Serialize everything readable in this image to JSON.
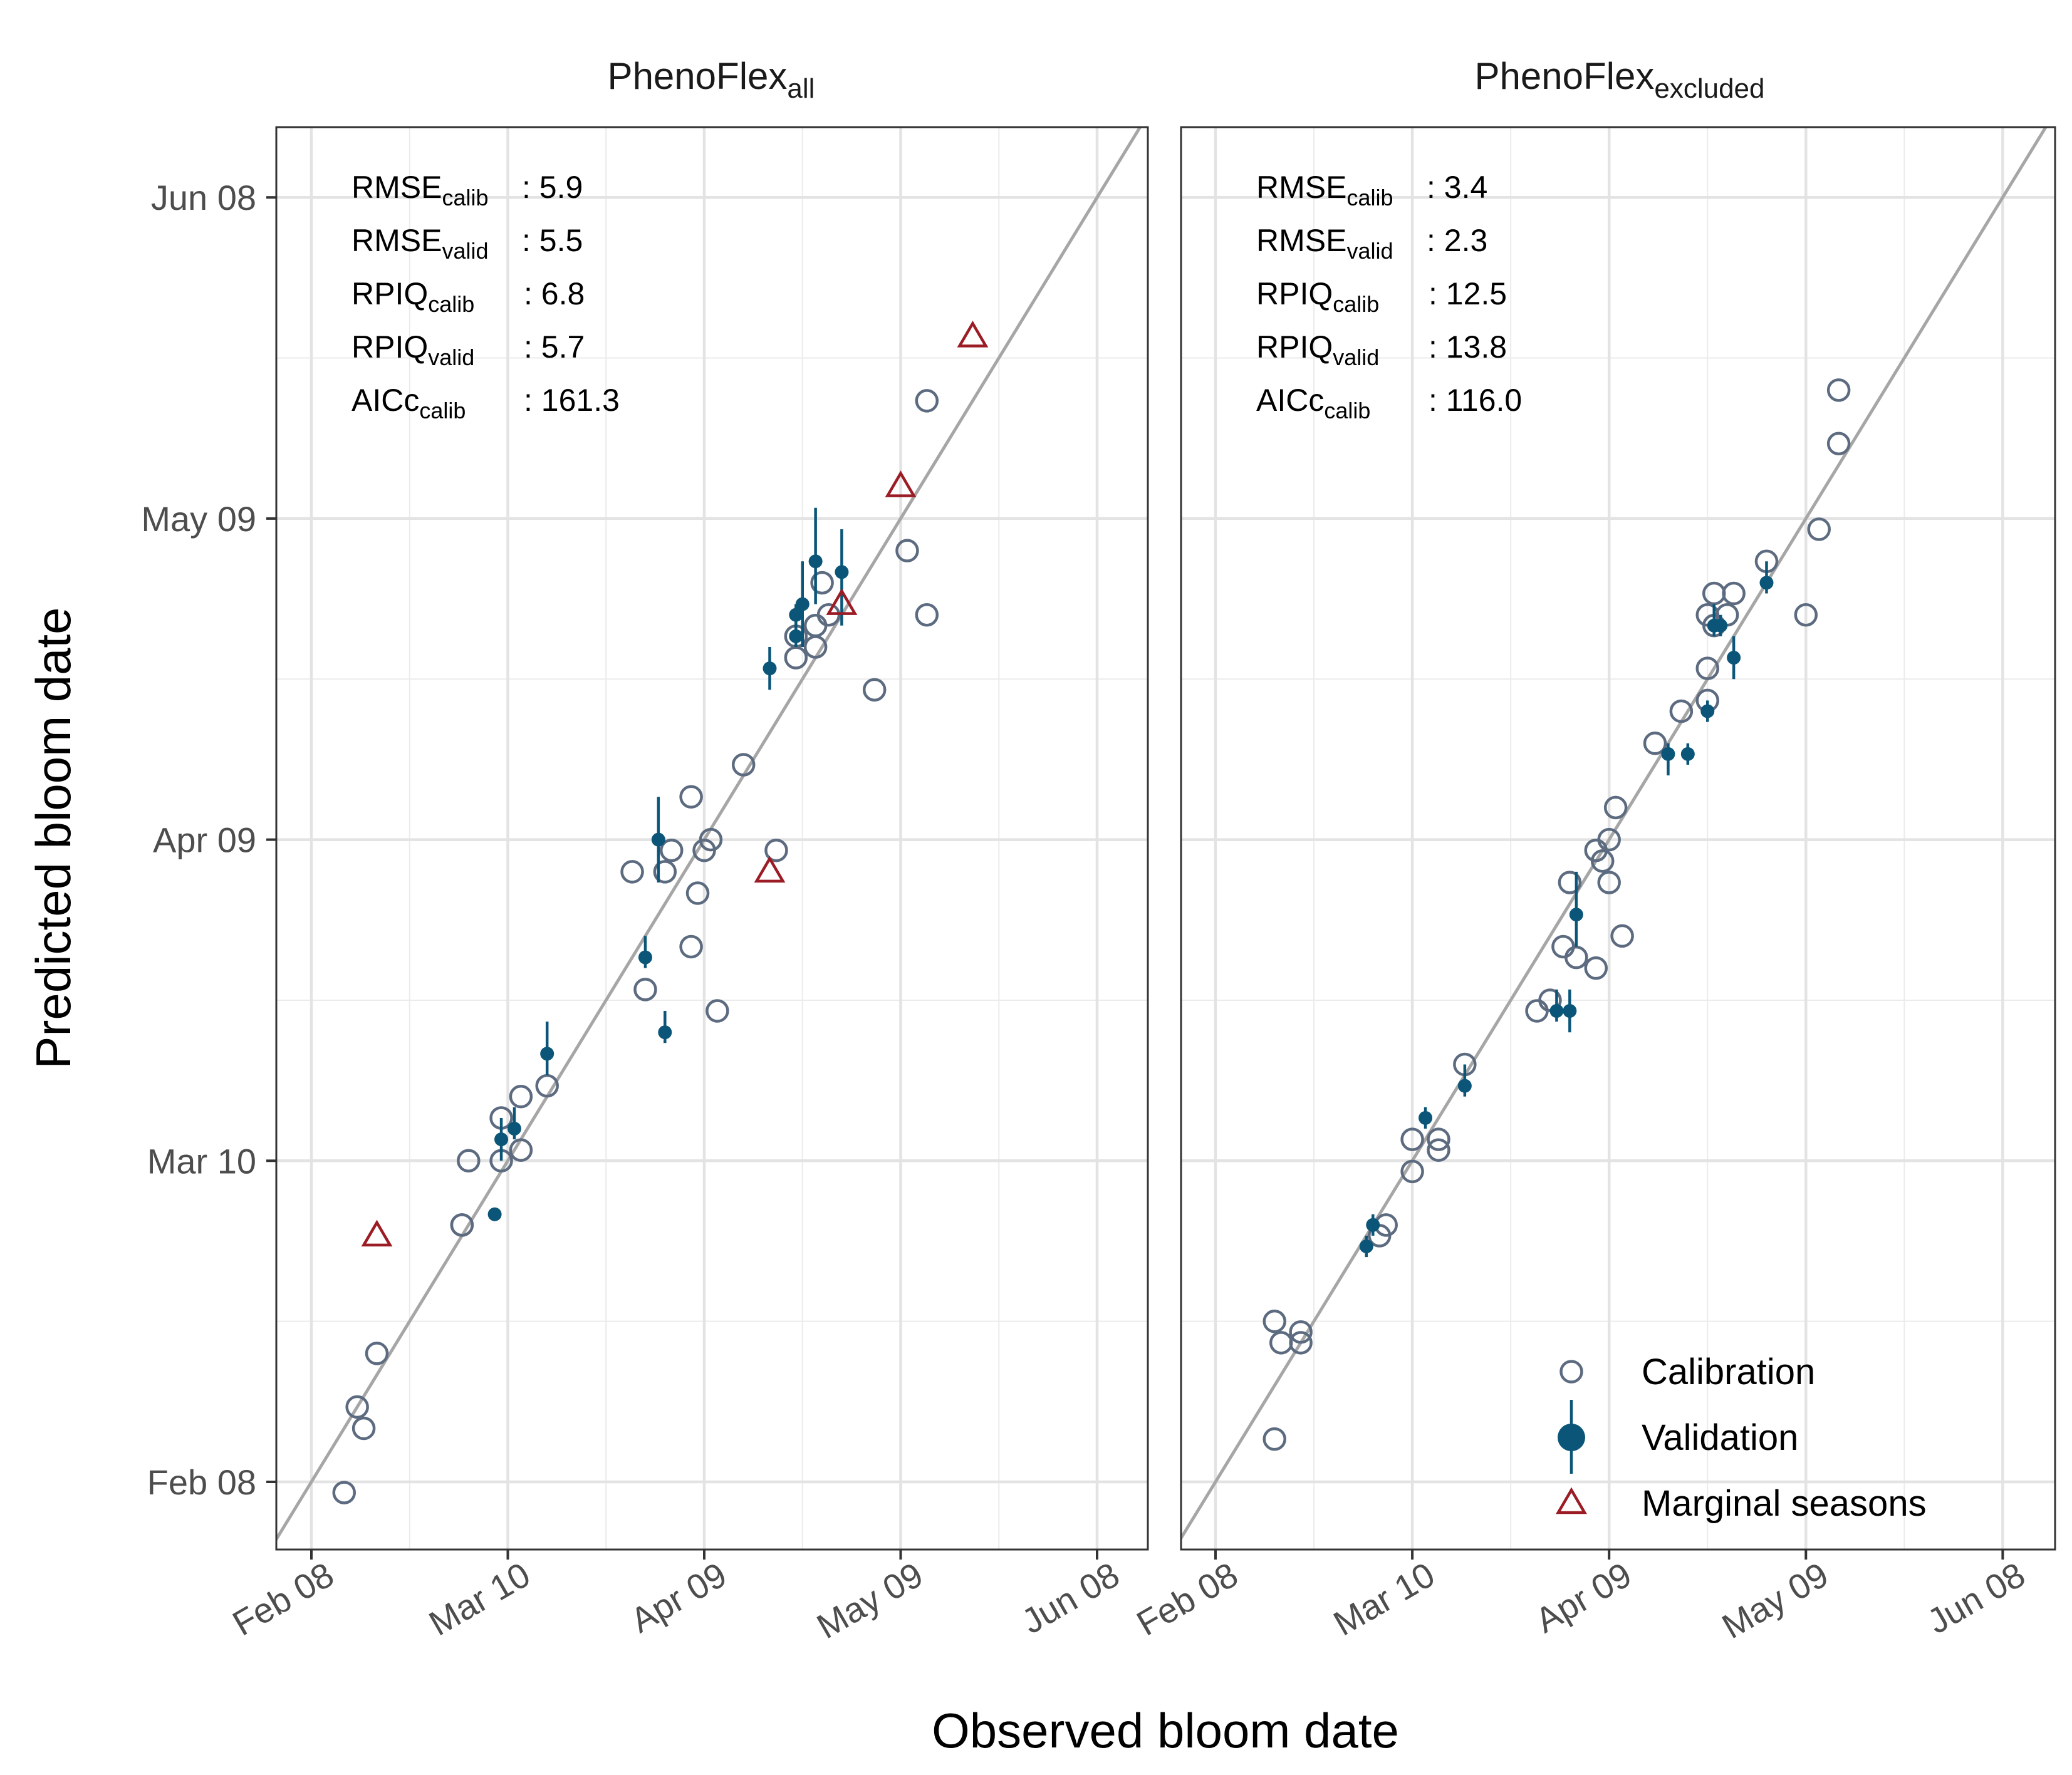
{
  "chart_data": {
    "type": "scatter",
    "xlabel": "Observed bloom date",
    "ylabel": "Predicted bloom date",
    "x_ticks": [
      "Feb 08",
      "Mar 10",
      "Apr 09",
      "May 09",
      "Jun 08"
    ],
    "y_ticks": [
      "Feb 08",
      "Mar 10",
      "Apr 09",
      "May 09",
      "Jun 08"
    ],
    "xlim": [
      "2021-02-02",
      "2021-06-12"
    ],
    "ylim": [
      "2021-02-01",
      "2021-06-15"
    ],
    "reference_line": "1:1",
    "grid": true,
    "colors": {
      "calibration": "#5d6b80",
      "validation": "#0b5678",
      "marginal": "#9b1c24",
      "reference": "#a6a6a6"
    },
    "legend": {
      "position": "bottom-right",
      "items": [
        {
          "label": "Calibration",
          "marker": "open-circle"
        },
        {
          "label": "Validation",
          "marker": "filled-circle-errorbar"
        },
        {
          "label": "Marginal seasons",
          "marker": "open-triangle"
        }
      ]
    },
    "panels": [
      {
        "title_main": "PhenoFlex",
        "title_sub": "all",
        "stats": [
          {
            "name": "RMSE",
            "sub": "calib",
            "value": ": 5.9"
          },
          {
            "name": "RMSE",
            "sub": "valid",
            "value": ": 5.5"
          },
          {
            "name": "RPIQ",
            "sub": "calib",
            "value": ": 6.8"
          },
          {
            "name": "RPIQ",
            "sub": "valid",
            "value": ": 5.7"
          },
          {
            "name": "AICc",
            "sub": "calib",
            "value": ": 161.3"
          }
        ],
        "calibration": [
          [
            "2021-02-13",
            "2021-02-07"
          ],
          [
            "2021-02-15",
            "2021-02-15"
          ],
          [
            "2021-02-16",
            "2021-02-13"
          ],
          [
            "2021-02-18",
            "2021-02-20"
          ],
          [
            "2021-03-03",
            "2021-03-04"
          ],
          [
            "2021-03-03",
            "2021-03-04"
          ],
          [
            "2021-03-04",
            "2021-03-10"
          ],
          [
            "2021-03-09",
            "2021-03-10"
          ],
          [
            "2021-03-09",
            "2021-03-14"
          ],
          [
            "2021-03-12",
            "2021-03-11"
          ],
          [
            "2021-03-12",
            "2021-03-16"
          ],
          [
            "2021-03-16",
            "2021-03-17"
          ],
          [
            "2021-03-29",
            "2021-04-06"
          ],
          [
            "2021-03-31",
            "2021-03-26"
          ],
          [
            "2021-04-03",
            "2021-04-06"
          ],
          [
            "2021-04-04",
            "2021-04-08"
          ],
          [
            "2021-04-07",
            "2021-04-13"
          ],
          [
            "2021-04-07",
            "2021-03-30"
          ],
          [
            "2021-04-08",
            "2021-04-04"
          ],
          [
            "2021-04-09",
            "2021-04-08"
          ],
          [
            "2021-04-10",
            "2021-04-09"
          ],
          [
            "2021-04-11",
            "2021-03-24"
          ],
          [
            "2021-04-15",
            "2021-04-16"
          ],
          [
            "2021-04-20",
            "2021-04-08"
          ],
          [
            "2021-04-23",
            "2021-04-26"
          ],
          [
            "2021-04-23",
            "2021-04-28"
          ],
          [
            "2021-04-26",
            "2021-04-27"
          ],
          [
            "2021-04-26",
            "2021-04-29"
          ],
          [
            "2021-04-27",
            "2021-05-03"
          ],
          [
            "2021-04-28",
            "2021-04-30"
          ],
          [
            "2021-05-05",
            "2021-04-23"
          ],
          [
            "2021-05-10",
            "2021-05-06"
          ],
          [
            "2021-05-13",
            "2021-04-30"
          ],
          [
            "2021-05-13",
            "2021-05-20"
          ]
        ],
        "validation": [
          [
            "2021-03-08",
            "2021-03-05",
            "2021-03-05",
            "2021-03-05"
          ],
          [
            "2021-03-09",
            "2021-03-12",
            "2021-03-10",
            "2021-03-14"
          ],
          [
            "2021-03-11",
            "2021-03-13",
            "2021-03-12",
            "2021-03-15"
          ],
          [
            "2021-03-16",
            "2021-03-20",
            "2021-03-18",
            "2021-03-23"
          ],
          [
            "2021-03-31",
            "2021-03-29",
            "2021-03-28",
            "2021-03-31"
          ],
          [
            "2021-04-02",
            "2021-04-09",
            "2021-04-05",
            "2021-04-13"
          ],
          [
            "2021-04-03",
            "2021-03-22",
            "2021-03-21",
            "2021-03-24"
          ],
          [
            "2021-04-19",
            "2021-04-25",
            "2021-04-23",
            "2021-04-27"
          ],
          [
            "2021-04-23",
            "2021-04-28",
            "2021-04-27",
            "2021-04-30"
          ],
          [
            "2021-04-23",
            "2021-04-30",
            "2021-04-28",
            "2021-05-01"
          ],
          [
            "2021-04-24",
            "2021-05-01",
            "2021-04-27",
            "2021-05-05"
          ],
          [
            "2021-04-26",
            "2021-05-05",
            "2021-05-01",
            "2021-05-10"
          ],
          [
            "2021-04-30",
            "2021-05-04",
            "2021-04-29",
            "2021-05-08"
          ]
        ],
        "marginal": [
          [
            "2021-02-18",
            "2021-03-03"
          ],
          [
            "2021-04-19",
            "2021-04-06"
          ],
          [
            "2021-04-30",
            "2021-05-01"
          ],
          [
            "2021-05-09",
            "2021-05-12"
          ],
          [
            "2021-05-20",
            "2021-05-26"
          ]
        ]
      },
      {
        "title_main": "PhenoFlex",
        "title_sub": "excluded",
        "stats": [
          {
            "name": "RMSE",
            "sub": "calib",
            "value": ": 3.4"
          },
          {
            "name": "RMSE",
            "sub": "valid",
            "value": ": 2.3"
          },
          {
            "name": "RPIQ",
            "sub": "calib",
            "value": ": 12.5"
          },
          {
            "name": "RPIQ",
            "sub": "valid",
            "value": ": 13.8"
          },
          {
            "name": "AICc",
            "sub": "calib",
            "value": ": 116.0"
          }
        ],
        "calibration": [
          [
            "2021-02-17",
            "2021-02-12"
          ],
          [
            "2021-02-17",
            "2021-02-23"
          ],
          [
            "2021-02-18",
            "2021-02-21"
          ],
          [
            "2021-02-21",
            "2021-02-21"
          ],
          [
            "2021-02-21",
            "2021-02-22"
          ],
          [
            "2021-03-05",
            "2021-03-03"
          ],
          [
            "2021-03-06",
            "2021-03-04"
          ],
          [
            "2021-03-10",
            "2021-03-09"
          ],
          [
            "2021-03-10",
            "2021-03-12"
          ],
          [
            "2021-03-14",
            "2021-03-11"
          ],
          [
            "2021-03-14",
            "2021-03-12"
          ],
          [
            "2021-03-18",
            "2021-03-19"
          ],
          [
            "2021-03-29",
            "2021-03-24"
          ],
          [
            "2021-03-31",
            "2021-03-25"
          ],
          [
            "2021-04-02",
            "2021-03-30"
          ],
          [
            "2021-04-03",
            "2021-04-05"
          ],
          [
            "2021-04-04",
            "2021-03-29"
          ],
          [
            "2021-04-07",
            "2021-03-28"
          ],
          [
            "2021-04-07",
            "2021-04-08"
          ],
          [
            "2021-04-08",
            "2021-04-07"
          ],
          [
            "2021-04-09",
            "2021-04-05"
          ],
          [
            "2021-04-09",
            "2021-04-09"
          ],
          [
            "2021-04-10",
            "2021-04-12"
          ],
          [
            "2021-04-11",
            "2021-03-31"
          ],
          [
            "2021-04-16",
            "2021-04-18"
          ],
          [
            "2021-04-20",
            "2021-04-21"
          ],
          [
            "2021-04-24",
            "2021-04-22"
          ],
          [
            "2021-04-24",
            "2021-04-25"
          ],
          [
            "2021-04-24",
            "2021-04-30"
          ],
          [
            "2021-04-25",
            "2021-04-29"
          ],
          [
            "2021-04-25",
            "2021-05-02"
          ],
          [
            "2021-04-27",
            "2021-04-30"
          ],
          [
            "2021-04-28",
            "2021-05-02"
          ],
          [
            "2021-05-03",
            "2021-05-05"
          ],
          [
            "2021-05-09",
            "2021-04-30"
          ],
          [
            "2021-05-11",
            "2021-05-08"
          ],
          [
            "2021-05-14",
            "2021-05-21"
          ],
          [
            "2021-05-14",
            "2021-05-16"
          ]
        ],
        "validation": [
          [
            "2021-03-03",
            "2021-03-02",
            "2021-03-01",
            "2021-03-03"
          ],
          [
            "2021-03-04",
            "2021-03-04",
            "2021-03-03",
            "2021-03-05"
          ],
          [
            "2021-03-12",
            "2021-03-14",
            "2021-03-13",
            "2021-03-15"
          ],
          [
            "2021-03-18",
            "2021-03-17",
            "2021-03-16",
            "2021-03-19"
          ],
          [
            "2021-04-01",
            "2021-03-24",
            "2021-03-23",
            "2021-03-26"
          ],
          [
            "2021-04-03",
            "2021-03-24",
            "2021-03-22",
            "2021-03-26"
          ],
          [
            "2021-04-04",
            "2021-04-02",
            "2021-03-30",
            "2021-04-06"
          ],
          [
            "2021-04-18",
            "2021-04-17",
            "2021-04-15",
            "2021-04-18"
          ],
          [
            "2021-04-21",
            "2021-04-17",
            "2021-04-16",
            "2021-04-18"
          ],
          [
            "2021-04-24",
            "2021-04-21",
            "2021-04-20",
            "2021-04-22"
          ],
          [
            "2021-04-25",
            "2021-04-29",
            "2021-04-28",
            "2021-05-01"
          ],
          [
            "2021-04-26",
            "2021-04-29",
            "2021-04-28",
            "2021-04-30"
          ],
          [
            "2021-04-28",
            "2021-04-26",
            "2021-04-24",
            "2021-04-28"
          ],
          [
            "2021-05-03",
            "2021-05-03",
            "2021-05-02",
            "2021-05-05"
          ]
        ],
        "marginal": []
      }
    ]
  }
}
